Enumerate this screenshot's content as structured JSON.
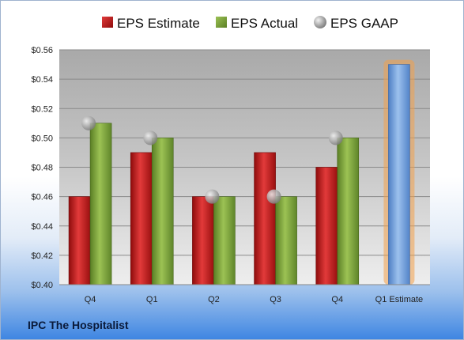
{
  "company": "IPC The Hospitalist",
  "legend": {
    "estimate": "EPS Estimate",
    "actual": "EPS Actual",
    "gaap": "EPS GAAP"
  },
  "colors": {
    "estimate": "#c01818",
    "actual": "#7aa33a",
    "gaap": "#a9a9a9",
    "forecast": "#6d9edc",
    "forecast_glow": "#f3a04a"
  },
  "chart_data": {
    "type": "bar",
    "categories": [
      "Q4",
      "Q1",
      "Q2",
      "Q3",
      "Q4",
      "Q1 Estimate"
    ],
    "ylim": [
      0.4,
      0.56
    ],
    "yticks": [
      "$0.40",
      "$0.42",
      "$0.44",
      "$0.46",
      "$0.48",
      "$0.50",
      "$0.52",
      "$0.54",
      "$0.56"
    ],
    "series": [
      {
        "name": "EPS Estimate",
        "values": [
          0.46,
          0.49,
          0.46,
          0.49,
          0.48,
          0.55
        ]
      },
      {
        "name": "EPS Actual",
        "values": [
          0.51,
          0.5,
          0.46,
          0.46,
          0.5,
          null
        ]
      },
      {
        "name": "EPS GAAP",
        "values": [
          0.51,
          0.5,
          0.46,
          0.46,
          0.5,
          null
        ]
      }
    ],
    "grid": true,
    "legend_position": "top"
  }
}
